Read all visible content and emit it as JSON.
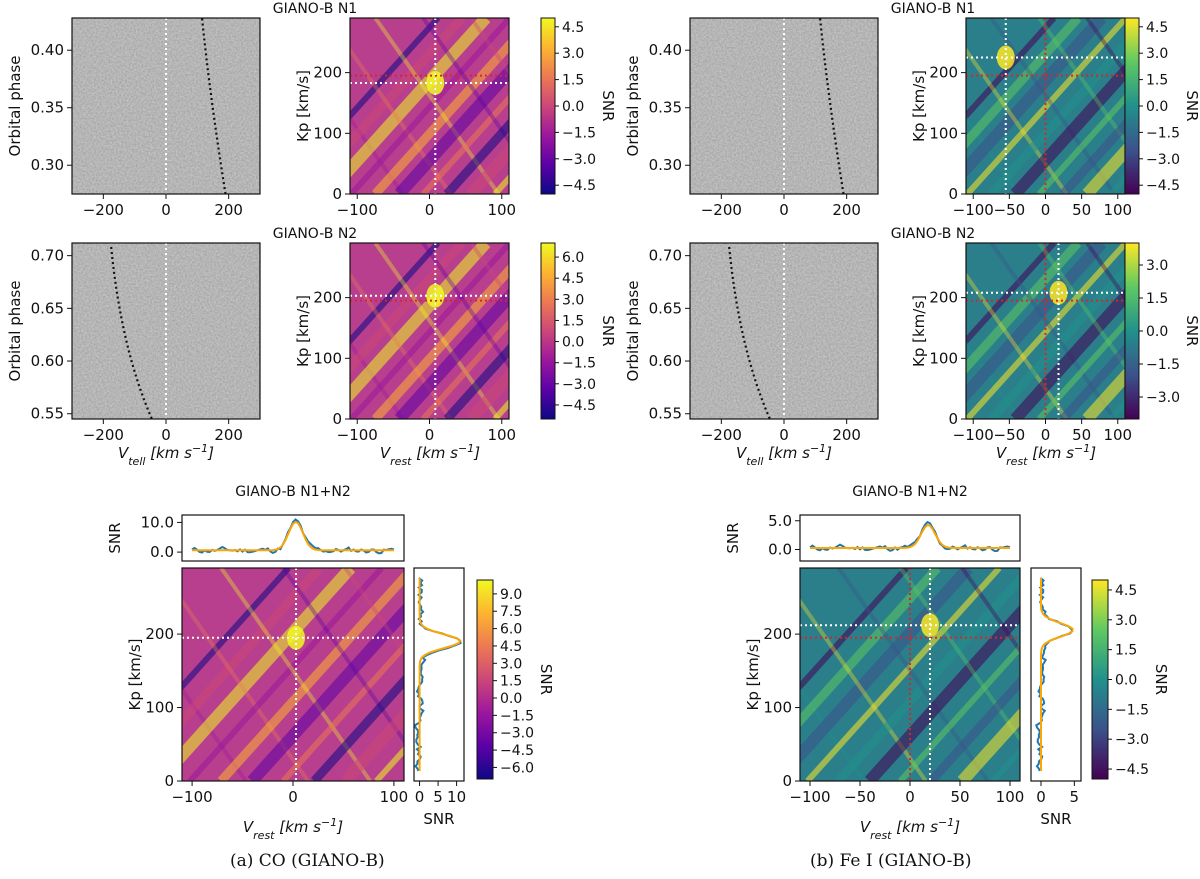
{
  "captions": {
    "a": "(a)  CO (GIANO-B)",
    "b": "(b)  Fe I (GIANO-B)"
  },
  "colors": {
    "plasma": [
      "#0d0887",
      "#5c01a6",
      "#9c179e",
      "#cc4778",
      "#ed7953",
      "#fdb42f",
      "#f0f921"
    ],
    "viridis": [
      "#440154",
      "#3b528b",
      "#21918c",
      "#5ec962",
      "#fde725"
    ],
    "line_blue": "#1f77b4",
    "line_orange": "#ffa500",
    "guide_white": "#ffffff",
    "guide_red": "#d62728",
    "trail_black": "#111111"
  },
  "labels": {
    "orbital_phase": "Orbital phase",
    "kp": "Kp [km/s]",
    "snr": "SNR",
    "vtell_main": "V",
    "vtell_sub": "tell",
    "vrest_main": "V",
    "vrest_sub": "rest",
    "vunit": " [km s",
    "vunit_exp": "−1",
    "vunit_close": "]"
  },
  "chart_data": [
    {
      "id": "co-n1-trail",
      "type": "heatmap",
      "title": "GIANO-B N1",
      "xlabel": "V_tell [km s^-1]",
      "ylabel": "Orbital phase",
      "xlim": [
        -300,
        300
      ],
      "ylim": [
        0.275,
        0.428
      ],
      "xticks": [
        "-200",
        "0",
        "200"
      ],
      "yticks": [
        "0.30",
        "0.35",
        "0.40"
      ],
      "colormap": "gray",
      "planet_trail_x": [
        115,
        190
      ]
    },
    {
      "id": "co-n1-kpmap",
      "type": "heatmap",
      "xlabel": "V_rest [km s^-1]",
      "ylabel": "Kp [km/s]",
      "xlim": [
        -110,
        110
      ],
      "ylim": [
        0,
        290
      ],
      "xticks": [
        "-100",
        "0",
        "100"
      ],
      "yticks": [
        "0",
        "100",
        "200"
      ],
      "colormap": "plasma",
      "cbar_ticks": [
        "4.5",
        "3.0",
        "1.5",
        "0.0",
        "-1.5",
        "-3.0",
        "-4.5"
      ],
      "cbar_range": [
        -5,
        5
      ],
      "peak": {
        "vrest": 8,
        "kp": 183
      },
      "expected": {
        "vrest": 8,
        "kp": 195
      },
      "clabel": "SNR"
    },
    {
      "id": "fe-n1-trail",
      "type": "heatmap",
      "title": "GIANO-B N1",
      "xlabel": "V_tell [km s^-1]",
      "ylabel": "Orbital phase",
      "xlim": [
        -300,
        300
      ],
      "ylim": [
        0.275,
        0.428
      ],
      "xticks": [
        "-200",
        "0",
        "200"
      ],
      "yticks": [
        "0.30",
        "0.35",
        "0.40"
      ],
      "colormap": "gray",
      "planet_trail_x": [
        115,
        190
      ]
    },
    {
      "id": "fe-n1-kpmap",
      "type": "heatmap",
      "xlabel": "V_rest [km s^-1]",
      "ylabel": "Kp [km/s]",
      "xlim": [
        -110,
        110
      ],
      "ylim": [
        0,
        290
      ],
      "xticks": [
        "-100",
        "-50",
        "0",
        "50",
        "100"
      ],
      "yticks": [
        "0",
        "100",
        "200"
      ],
      "colormap": "viridis",
      "cbar_ticks": [
        "4.5",
        "3.0",
        "1.5",
        "0.0",
        "-1.5",
        "-3.0",
        "-4.5"
      ],
      "cbar_range": [
        -5,
        5
      ],
      "peak": {
        "vrest": -55,
        "kp": 225
      },
      "expected": {
        "vrest": 0,
        "kp": 195
      },
      "clabel": "SNR"
    },
    {
      "id": "co-n2-trail",
      "type": "heatmap",
      "title": "GIANO-B N2",
      "xlabel": "V_tell [km s^-1]",
      "ylabel": "Orbital phase",
      "xlim": [
        -300,
        300
      ],
      "ylim": [
        0.545,
        0.712
      ],
      "xticks": [
        "-200",
        "0",
        "200"
      ],
      "yticks": [
        "0.55",
        "0.60",
        "0.65",
        "0.70"
      ],
      "colormap": "gray",
      "planet_trail_x": [
        -175,
        -45
      ]
    },
    {
      "id": "co-n2-kpmap",
      "type": "heatmap",
      "xlabel": "V_rest [km s^-1]",
      "ylabel": "Kp [km/s]",
      "xlim": [
        -110,
        110
      ],
      "ylim": [
        0,
        290
      ],
      "xticks": [
        "-100",
        "0",
        "100"
      ],
      "yticks": [
        "0",
        "100",
        "200"
      ],
      "colormap": "plasma",
      "cbar_ticks": [
        "6.0",
        "4.5",
        "3.0",
        "1.5",
        "0.0",
        "-1.5",
        "-3.0",
        "-4.5"
      ],
      "cbar_range": [
        -5.5,
        7
      ],
      "peak": {
        "vrest": 8,
        "kp": 203
      },
      "expected": {
        "vrest": 8,
        "kp": 195
      },
      "clabel": "SNR"
    },
    {
      "id": "fe-n2-trail",
      "type": "heatmap",
      "title": "GIANO-B N2",
      "xlabel": "V_tell [km s^-1]",
      "ylabel": "Orbital phase",
      "xlim": [
        -300,
        300
      ],
      "ylim": [
        0.545,
        0.712
      ],
      "xticks": [
        "-200",
        "0",
        "200"
      ],
      "yticks": [
        "0.55",
        "0.60",
        "0.65",
        "0.70"
      ],
      "colormap": "gray",
      "planet_trail_x": [
        -175,
        -45
      ]
    },
    {
      "id": "fe-n2-kpmap",
      "type": "heatmap",
      "xlabel": "V_rest [km s^-1]",
      "ylabel": "Kp [km/s]",
      "xlim": [
        -110,
        110
      ],
      "ylim": [
        0,
        290
      ],
      "xticks": [
        "-100",
        "-50",
        "0",
        "50",
        "100"
      ],
      "yticks": [
        "0",
        "100",
        "200"
      ],
      "colormap": "viridis",
      "cbar_ticks": [
        "3.0",
        "1.5",
        "0.0",
        "-1.5",
        "-3.0"
      ],
      "cbar_range": [
        -4,
        4
      ],
      "peak": {
        "vrest": 18,
        "kp": 208
      },
      "expected": {
        "vrest": 0,
        "kp": 195
      },
      "clabel": "SNR"
    },
    {
      "id": "co-comb-kpmap",
      "type": "heatmap",
      "title": "GIANO-B N1+N2",
      "xlabel": "V_rest [km s^-1]",
      "ylabel": "Kp [km/s]",
      "xlim": [
        -110,
        110
      ],
      "ylim": [
        0,
        290
      ],
      "xticks": [
        "-100",
        "0",
        "100"
      ],
      "yticks": [
        "0",
        "100",
        "200"
      ],
      "colormap": "plasma",
      "cbar_ticks": [
        "9.0",
        "7.5",
        "6.0",
        "4.5",
        "3.0",
        "1.5",
        "0.0",
        "-1.5",
        "-3.0",
        "-4.5",
        "-6.0"
      ],
      "cbar_range": [
        -7,
        10.2
      ],
      "peak": {
        "vrest": 3,
        "kp": 195
      },
      "expected": {
        "vrest": 3,
        "kp": 195
      },
      "clabel": "SNR",
      "top_profile": {
        "ylabel": "SNR",
        "yticks": [
          "0.0",
          "10.0"
        ],
        "ylim": [
          -3,
          12.5
        ],
        "fit_peak": 11,
        "fit_width": 9
      },
      "side_profile": {
        "xlabel": "SNR",
        "xticks": [
          "0",
          "5",
          "10"
        ],
        "xlim": [
          -1.5,
          12
        ],
        "fit_peak": 11,
        "fit_width": 10
      }
    },
    {
      "id": "fe-comb-kpmap",
      "type": "heatmap",
      "title": "GIANO-B N1+N2",
      "xlabel": "V_rest [km s^-1]",
      "ylabel": "Kp [km/s]",
      "xlim": [
        -110,
        110
      ],
      "ylim": [
        0,
        290
      ],
      "xticks": [
        "-100",
        "-50",
        "0",
        "50",
        "100"
      ],
      "yticks": [
        "0",
        "100",
        "200"
      ],
      "colormap": "viridis",
      "cbar_ticks": [
        "4.5",
        "3.0",
        "1.5",
        "0.0",
        "-1.5",
        "-3.0",
        "-4.5"
      ],
      "cbar_range": [
        -5,
        5
      ],
      "peak": {
        "vrest": 20,
        "kp": 212
      },
      "expected": {
        "vrest": 0,
        "kp": 195
      },
      "clabel": "SNR",
      "top_profile": {
        "ylabel": "SNR",
        "yticks": [
          "0.0",
          "5.0"
        ],
        "ylim": [
          -2,
          6
        ],
        "fit_peak": 4.6,
        "fit_width": 11
      },
      "side_profile": {
        "xlabel": "SNR",
        "xticks": [
          "0",
          "5"
        ],
        "xlim": [
          -1.5,
          6
        ],
        "fit_peak": 4.8,
        "fit_width": 12
      }
    }
  ]
}
